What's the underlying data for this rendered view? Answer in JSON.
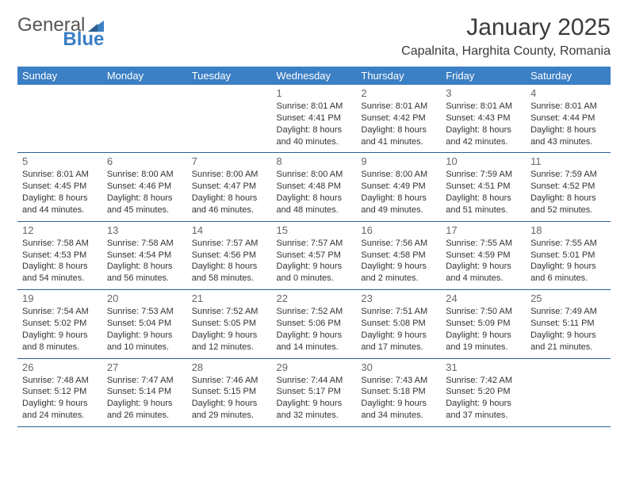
{
  "logo": {
    "text_gray": "General",
    "text_blue": "Blue"
  },
  "title": "January 2025",
  "location": "Capalnita, Harghita County, Romania",
  "colors": {
    "header_bg": "#3b7fc4",
    "header_text": "#ffffff",
    "border": "#2e5f8f",
    "body_text": "#333333",
    "daynum": "#666666",
    "title_text": "#3a3a3a",
    "logo_gray": "#555555",
    "logo_blue": "#3b7fc4",
    "background": "#ffffff"
  },
  "fonts": {
    "family": "Arial",
    "title_size": 30,
    "location_size": 16,
    "header_cell_size": 13,
    "daynum_size": 13,
    "cell_line_size": 11
  },
  "day_headers": [
    "Sunday",
    "Monday",
    "Tuesday",
    "Wednesday",
    "Thursday",
    "Friday",
    "Saturday"
  ],
  "weeks": [
    [
      null,
      null,
      null,
      {
        "n": "1",
        "sr": "8:01 AM",
        "ss": "4:41 PM",
        "dl1": "8 hours",
        "dl2": "40 minutes."
      },
      {
        "n": "2",
        "sr": "8:01 AM",
        "ss": "4:42 PM",
        "dl1": "8 hours",
        "dl2": "41 minutes."
      },
      {
        "n": "3",
        "sr": "8:01 AM",
        "ss": "4:43 PM",
        "dl1": "8 hours",
        "dl2": "42 minutes."
      },
      {
        "n": "4",
        "sr": "8:01 AM",
        "ss": "4:44 PM",
        "dl1": "8 hours",
        "dl2": "43 minutes."
      }
    ],
    [
      {
        "n": "5",
        "sr": "8:01 AM",
        "ss": "4:45 PM",
        "dl1": "8 hours",
        "dl2": "44 minutes."
      },
      {
        "n": "6",
        "sr": "8:00 AM",
        "ss": "4:46 PM",
        "dl1": "8 hours",
        "dl2": "45 minutes."
      },
      {
        "n": "7",
        "sr": "8:00 AM",
        "ss": "4:47 PM",
        "dl1": "8 hours",
        "dl2": "46 minutes."
      },
      {
        "n": "8",
        "sr": "8:00 AM",
        "ss": "4:48 PM",
        "dl1": "8 hours",
        "dl2": "48 minutes."
      },
      {
        "n": "9",
        "sr": "8:00 AM",
        "ss": "4:49 PM",
        "dl1": "8 hours",
        "dl2": "49 minutes."
      },
      {
        "n": "10",
        "sr": "7:59 AM",
        "ss": "4:51 PM",
        "dl1": "8 hours",
        "dl2": "51 minutes."
      },
      {
        "n": "11",
        "sr": "7:59 AM",
        "ss": "4:52 PM",
        "dl1": "8 hours",
        "dl2": "52 minutes."
      }
    ],
    [
      {
        "n": "12",
        "sr": "7:58 AM",
        "ss": "4:53 PM",
        "dl1": "8 hours",
        "dl2": "54 minutes."
      },
      {
        "n": "13",
        "sr": "7:58 AM",
        "ss": "4:54 PM",
        "dl1": "8 hours",
        "dl2": "56 minutes."
      },
      {
        "n": "14",
        "sr": "7:57 AM",
        "ss": "4:56 PM",
        "dl1": "8 hours",
        "dl2": "58 minutes."
      },
      {
        "n": "15",
        "sr": "7:57 AM",
        "ss": "4:57 PM",
        "dl1": "9 hours",
        "dl2": "0 minutes."
      },
      {
        "n": "16",
        "sr": "7:56 AM",
        "ss": "4:58 PM",
        "dl1": "9 hours",
        "dl2": "2 minutes."
      },
      {
        "n": "17",
        "sr": "7:55 AM",
        "ss": "4:59 PM",
        "dl1": "9 hours",
        "dl2": "4 minutes."
      },
      {
        "n": "18",
        "sr": "7:55 AM",
        "ss": "5:01 PM",
        "dl1": "9 hours",
        "dl2": "6 minutes."
      }
    ],
    [
      {
        "n": "19",
        "sr": "7:54 AM",
        "ss": "5:02 PM",
        "dl1": "9 hours",
        "dl2": "8 minutes."
      },
      {
        "n": "20",
        "sr": "7:53 AM",
        "ss": "5:04 PM",
        "dl1": "9 hours",
        "dl2": "10 minutes."
      },
      {
        "n": "21",
        "sr": "7:52 AM",
        "ss": "5:05 PM",
        "dl1": "9 hours",
        "dl2": "12 minutes."
      },
      {
        "n": "22",
        "sr": "7:52 AM",
        "ss": "5:06 PM",
        "dl1": "9 hours",
        "dl2": "14 minutes."
      },
      {
        "n": "23",
        "sr": "7:51 AM",
        "ss": "5:08 PM",
        "dl1": "9 hours",
        "dl2": "17 minutes."
      },
      {
        "n": "24",
        "sr": "7:50 AM",
        "ss": "5:09 PM",
        "dl1": "9 hours",
        "dl2": "19 minutes."
      },
      {
        "n": "25",
        "sr": "7:49 AM",
        "ss": "5:11 PM",
        "dl1": "9 hours",
        "dl2": "21 minutes."
      }
    ],
    [
      {
        "n": "26",
        "sr": "7:48 AM",
        "ss": "5:12 PM",
        "dl1": "9 hours",
        "dl2": "24 minutes."
      },
      {
        "n": "27",
        "sr": "7:47 AM",
        "ss": "5:14 PM",
        "dl1": "9 hours",
        "dl2": "26 minutes."
      },
      {
        "n": "28",
        "sr": "7:46 AM",
        "ss": "5:15 PM",
        "dl1": "9 hours",
        "dl2": "29 minutes."
      },
      {
        "n": "29",
        "sr": "7:44 AM",
        "ss": "5:17 PM",
        "dl1": "9 hours",
        "dl2": "32 minutes."
      },
      {
        "n": "30",
        "sr": "7:43 AM",
        "ss": "5:18 PM",
        "dl1": "9 hours",
        "dl2": "34 minutes."
      },
      {
        "n": "31",
        "sr": "7:42 AM",
        "ss": "5:20 PM",
        "dl1": "9 hours",
        "dl2": "37 minutes."
      },
      null
    ]
  ],
  "labels": {
    "sunrise": "Sunrise:",
    "sunset": "Sunset:",
    "daylight": "Daylight:",
    "and": "and"
  }
}
